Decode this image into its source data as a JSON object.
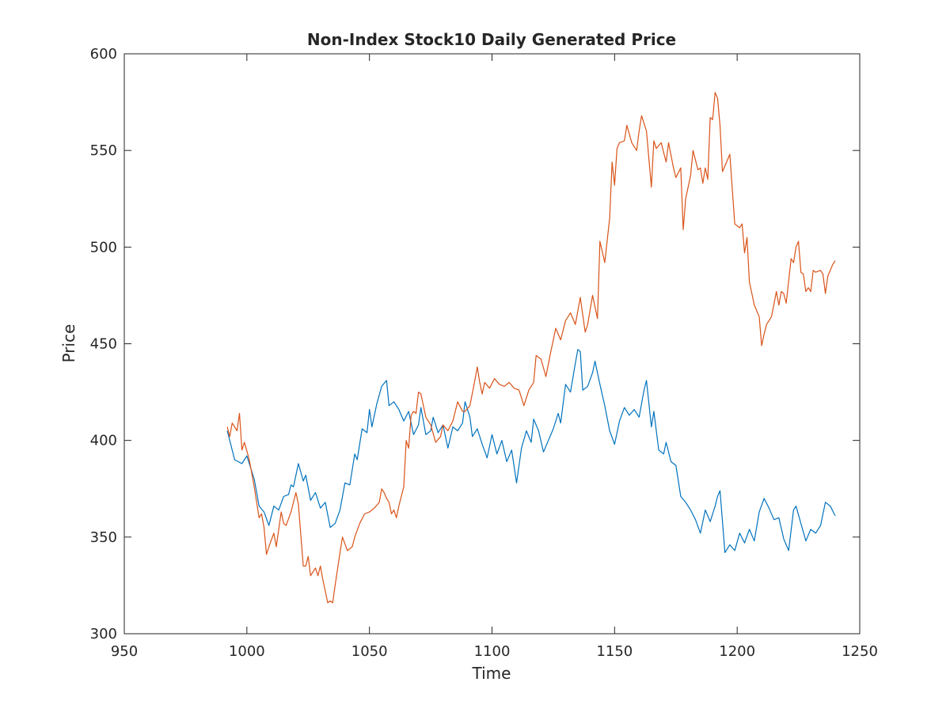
{
  "chart_data": {
    "type": "line",
    "title": "Non-Index Stock10 Daily Generated Price",
    "xlabel": "Time",
    "ylabel": "Price",
    "xlim": [
      950,
      1250
    ],
    "ylim": [
      300,
      600
    ],
    "xticks": [
      "950",
      "1000",
      "1050",
      "1100",
      "1150",
      "1200",
      "1250"
    ],
    "yticks": [
      "300",
      "350",
      "400",
      "450",
      "500",
      "550",
      "600"
    ],
    "grid": false,
    "legend": false,
    "colors": [
      "#0072BD",
      "#D95319"
    ],
    "series": [
      {
        "color": "#0072BD",
        "points": [
          [
            992,
            405
          ],
          [
            995,
            390
          ],
          [
            998,
            388
          ],
          [
            1000,
            392
          ],
          [
            1003,
            380
          ],
          [
            1005,
            366
          ],
          [
            1007,
            363
          ],
          [
            1009,
            356
          ],
          [
            1011,
            366
          ],
          [
            1013,
            364
          ],
          [
            1015,
            371
          ],
          [
            1017,
            372
          ],
          [
            1018,
            377
          ],
          [
            1019,
            376
          ],
          [
            1021,
            388
          ],
          [
            1023,
            379
          ],
          [
            1024,
            382
          ],
          [
            1026,
            369
          ],
          [
            1028,
            373
          ],
          [
            1030,
            365
          ],
          [
            1032,
            368
          ],
          [
            1034,
            355
          ],
          [
            1036,
            357
          ],
          [
            1038,
            364
          ],
          [
            1040,
            378
          ],
          [
            1042,
            377
          ],
          [
            1044,
            393
          ],
          [
            1045,
            390
          ],
          [
            1047,
            406
          ],
          [
            1049,
            404
          ],
          [
            1050,
            416
          ],
          [
            1051,
            407
          ],
          [
            1053,
            419
          ],
          [
            1055,
            428
          ],
          [
            1057,
            431
          ],
          [
            1058,
            418
          ],
          [
            1060,
            420
          ],
          [
            1062,
            416
          ],
          [
            1064,
            410
          ],
          [
            1066,
            415
          ],
          [
            1068,
            403
          ],
          [
            1070,
            408
          ],
          [
            1071,
            417
          ],
          [
            1073,
            403
          ],
          [
            1075,
            405
          ],
          [
            1076,
            412
          ],
          [
            1078,
            404
          ],
          [
            1080,
            408
          ],
          [
            1082,
            396
          ],
          [
            1084,
            407
          ],
          [
            1086,
            405
          ],
          [
            1088,
            409
          ],
          [
            1089,
            420
          ],
          [
            1091,
            412
          ],
          [
            1092,
            402
          ],
          [
            1094,
            406
          ],
          [
            1096,
            398
          ],
          [
            1098,
            391
          ],
          [
            1100,
            403
          ],
          [
            1102,
            393
          ],
          [
            1104,
            400
          ],
          [
            1106,
            389
          ],
          [
            1108,
            395
          ],
          [
            1110,
            378
          ],
          [
            1112,
            396
          ],
          [
            1114,
            405
          ],
          [
            1116,
            399
          ],
          [
            1117,
            411
          ],
          [
            1119,
            405
          ],
          [
            1121,
            394
          ],
          [
            1123,
            400
          ],
          [
            1125,
            406
          ],
          [
            1127,
            414
          ],
          [
            1128,
            409
          ],
          [
            1130,
            429
          ],
          [
            1132,
            425
          ],
          [
            1134,
            440
          ],
          [
            1135,
            447
          ],
          [
            1136,
            446
          ],
          [
            1137,
            426
          ],
          [
            1139,
            428
          ],
          [
            1141,
            435
          ],
          [
            1142,
            441
          ],
          [
            1144,
            429
          ],
          [
            1146,
            418
          ],
          [
            1148,
            405
          ],
          [
            1150,
            398
          ],
          [
            1152,
            410
          ],
          [
            1154,
            417
          ],
          [
            1156,
            413
          ],
          [
            1158,
            416
          ],
          [
            1160,
            412
          ],
          [
            1162,
            426
          ],
          [
            1163,
            431
          ],
          [
            1165,
            407
          ],
          [
            1166,
            415
          ],
          [
            1168,
            395
          ],
          [
            1170,
            393
          ],
          [
            1171,
            399
          ],
          [
            1173,
            389
          ],
          [
            1175,
            387
          ],
          [
            1177,
            371
          ],
          [
            1179,
            368
          ],
          [
            1181,
            364
          ],
          [
            1183,
            359
          ],
          [
            1185,
            352
          ],
          [
            1187,
            364
          ],
          [
            1189,
            358
          ],
          [
            1191,
            366
          ],
          [
            1192,
            371
          ],
          [
            1193,
            374
          ],
          [
            1195,
            342
          ],
          [
            1197,
            346
          ],
          [
            1199,
            343
          ],
          [
            1201,
            352
          ],
          [
            1203,
            347
          ],
          [
            1205,
            354
          ],
          [
            1207,
            348
          ],
          [
            1209,
            363
          ],
          [
            1211,
            370
          ],
          [
            1213,
            365
          ],
          [
            1215,
            359
          ],
          [
            1217,
            360
          ],
          [
            1219,
            349
          ],
          [
            1221,
            343
          ],
          [
            1223,
            364
          ],
          [
            1224,
            366
          ],
          [
            1226,
            357
          ],
          [
            1228,
            348
          ],
          [
            1230,
            354
          ],
          [
            1232,
            352
          ],
          [
            1234,
            356
          ],
          [
            1236,
            368
          ],
          [
            1238,
            366
          ],
          [
            1240,
            361
          ]
        ]
      },
      {
        "color": "#D95319",
        "points": [
          [
            992,
            407
          ],
          [
            993,
            402
          ],
          [
            994,
            409
          ],
          [
            996,
            405
          ],
          [
            997,
            414
          ],
          [
            998,
            395
          ],
          [
            999,
            399
          ],
          [
            1001,
            390
          ],
          [
            1003,
            376
          ],
          [
            1005,
            360
          ],
          [
            1006,
            362
          ],
          [
            1007,
            355
          ],
          [
            1008,
            341
          ],
          [
            1009,
            345
          ],
          [
            1011,
            352
          ],
          [
            1012,
            345
          ],
          [
            1014,
            363
          ],
          [
            1015,
            357
          ],
          [
            1016,
            356
          ],
          [
            1018,
            363
          ],
          [
            1020,
            373
          ],
          [
            1021,
            367
          ],
          [
            1023,
            335
          ],
          [
            1024,
            335
          ],
          [
            1025,
            340
          ],
          [
            1026,
            330
          ],
          [
            1028,
            334
          ],
          [
            1029,
            330
          ],
          [
            1030,
            335
          ],
          [
            1031,
            328
          ],
          [
            1032,
            322
          ],
          [
            1033,
            316
          ],
          [
            1034,
            317
          ],
          [
            1035,
            316
          ],
          [
            1036,
            325
          ],
          [
            1038,
            342
          ],
          [
            1039,
            350
          ],
          [
            1041,
            343
          ],
          [
            1043,
            345
          ],
          [
            1044,
            350
          ],
          [
            1046,
            357
          ],
          [
            1048,
            362
          ],
          [
            1050,
            363
          ],
          [
            1052,
            365
          ],
          [
            1054,
            368
          ],
          [
            1055,
            375
          ],
          [
            1056,
            373
          ],
          [
            1057,
            370
          ],
          [
            1058,
            368
          ],
          [
            1059,
            362
          ],
          [
            1060,
            364
          ],
          [
            1061,
            360
          ],
          [
            1062,
            366
          ],
          [
            1064,
            376
          ],
          [
            1065,
            400
          ],
          [
            1066,
            396
          ],
          [
            1067,
            413
          ],
          [
            1068,
            415
          ],
          [
            1069,
            414
          ],
          [
            1070,
            425
          ],
          [
            1071,
            424
          ],
          [
            1073,
            412
          ],
          [
            1075,
            408
          ],
          [
            1077,
            399
          ],
          [
            1079,
            402
          ],
          [
            1080,
            408
          ],
          [
            1082,
            405
          ],
          [
            1084,
            410
          ],
          [
            1086,
            420
          ],
          [
            1088,
            415
          ],
          [
            1089,
            415
          ],
          [
            1091,
            418
          ],
          [
            1093,
            431
          ],
          [
            1094,
            438
          ],
          [
            1095,
            430
          ],
          [
            1096,
            424
          ],
          [
            1097,
            430
          ],
          [
            1099,
            427
          ],
          [
            1101,
            432
          ],
          [
            1103,
            429
          ],
          [
            1105,
            428
          ],
          [
            1107,
            430
          ],
          [
            1109,
            427
          ],
          [
            1111,
            426
          ],
          [
            1113,
            418
          ],
          [
            1115,
            426
          ],
          [
            1117,
            430
          ],
          [
            1118,
            444
          ],
          [
            1120,
            442
          ],
          [
            1122,
            433
          ],
          [
            1124,
            446
          ],
          [
            1126,
            458
          ],
          [
            1128,
            452
          ],
          [
            1130,
            462
          ],
          [
            1132,
            466
          ],
          [
            1134,
            460
          ],
          [
            1136,
            474
          ],
          [
            1138,
            456
          ],
          [
            1139,
            460
          ],
          [
            1141,
            475
          ],
          [
            1143,
            463
          ],
          [
            1144,
            503
          ],
          [
            1146,
            492
          ],
          [
            1148,
            515
          ],
          [
            1149,
            544
          ],
          [
            1150,
            532
          ],
          [
            1151,
            551
          ],
          [
            1152,
            554
          ],
          [
            1154,
            555
          ],
          [
            1155,
            563
          ],
          [
            1157,
            554
          ],
          [
            1159,
            550
          ],
          [
            1160,
            560
          ],
          [
            1161,
            568
          ],
          [
            1163,
            560
          ],
          [
            1165,
            531
          ],
          [
            1166,
            555
          ],
          [
            1167,
            551
          ],
          [
            1169,
            554
          ],
          [
            1171,
            544
          ],
          [
            1172,
            554
          ],
          [
            1174,
            541
          ],
          [
            1175,
            536
          ],
          [
            1177,
            541
          ],
          [
            1178,
            509
          ],
          [
            1179,
            525
          ],
          [
            1181,
            537
          ],
          [
            1182,
            550
          ],
          [
            1184,
            540
          ],
          [
            1185,
            541
          ],
          [
            1186,
            533
          ],
          [
            1187,
            541
          ],
          [
            1188,
            535
          ],
          [
            1189,
            567
          ],
          [
            1190,
            566
          ],
          [
            1191,
            580
          ],
          [
            1192,
            577
          ],
          [
            1193,
            563
          ],
          [
            1194,
            539
          ],
          [
            1196,
            545
          ],
          [
            1197,
            548
          ],
          [
            1198,
            530
          ],
          [
            1199,
            512
          ],
          [
            1201,
            510
          ],
          [
            1202,
            512
          ],
          [
            1203,
            497
          ],
          [
            1204,
            505
          ],
          [
            1205,
            482
          ],
          [
            1207,
            470
          ],
          [
            1209,
            464
          ],
          [
            1210,
            449
          ],
          [
            1211,
            455
          ],
          [
            1212,
            460
          ],
          [
            1214,
            464
          ],
          [
            1216,
            477
          ],
          [
            1217,
            470
          ],
          [
            1218,
            477
          ],
          [
            1219,
            476
          ],
          [
            1220,
            471
          ],
          [
            1222,
            494
          ],
          [
            1223,
            492
          ],
          [
            1224,
            500
          ],
          [
            1225,
            503
          ],
          [
            1226,
            487
          ],
          [
            1227,
            486
          ],
          [
            1228,
            477
          ],
          [
            1229,
            479
          ],
          [
            1230,
            477
          ],
          [
            1231,
            488
          ],
          [
            1232,
            487
          ],
          [
            1234,
            488
          ],
          [
            1235,
            486
          ],
          [
            1236,
            476
          ],
          [
            1237,
            485
          ],
          [
            1239,
            491
          ],
          [
            1240,
            493
          ]
        ]
      }
    ]
  }
}
